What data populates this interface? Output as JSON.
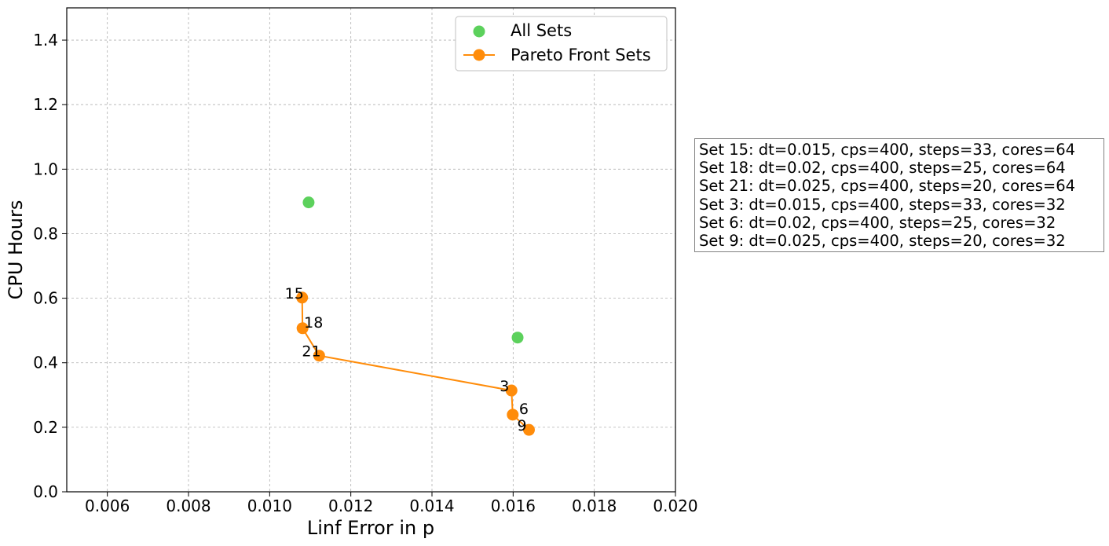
{
  "chart_data": {
    "type": "scatter",
    "xlabel": "Linf Error in p",
    "ylabel": "CPU Hours",
    "xlim": [
      0.005,
      0.02
    ],
    "ylim": [
      0.0,
      1.5
    ],
    "xticks": [
      "0.006",
      "0.008",
      "0.010",
      "0.012",
      "0.014",
      "0.016",
      "0.018",
      "0.020"
    ],
    "yticks": [
      "0.0",
      "0.2",
      "0.4",
      "0.6",
      "0.8",
      "1.0",
      "1.2",
      "1.4"
    ],
    "grid": true,
    "legend_position": "top-right",
    "series": [
      {
        "name": "All Sets",
        "style": "scatter",
        "color": "#5cd15c",
        "points": [
          {
            "x": 0.01096,
            "y": 0.897
          },
          {
            "x": 0.01611,
            "y": 0.478
          }
        ]
      },
      {
        "name": "Pareto Front Sets",
        "style": "line-marker",
        "color": "#ff8c0a",
        "points": [
          {
            "x": 0.0108,
            "y": 0.602,
            "label": "15"
          },
          {
            "x": 0.01081,
            "y": 0.507,
            "label": "18"
          },
          {
            "x": 0.01122,
            "y": 0.422,
            "label": "21"
          },
          {
            "x": 0.01596,
            "y": 0.314,
            "label": "3"
          },
          {
            "x": 0.01599,
            "y": 0.239,
            "label": "6"
          },
          {
            "x": 0.01639,
            "y": 0.192,
            "label": "9"
          }
        ]
      }
    ]
  },
  "info_box": {
    "lines": [
      "Set 15: dt=0.015, cps=400, steps=33, cores=64",
      "Set 18: dt=0.02, cps=400, steps=25, cores=64",
      "Set 21: dt=0.025, cps=400, steps=20, cores=64",
      "Set 3: dt=0.015, cps=400, steps=33, cores=32",
      "Set 6: dt=0.02, cps=400, steps=25, cores=32",
      "Set 9: dt=0.025, cps=400, steps=20, cores=32"
    ]
  }
}
